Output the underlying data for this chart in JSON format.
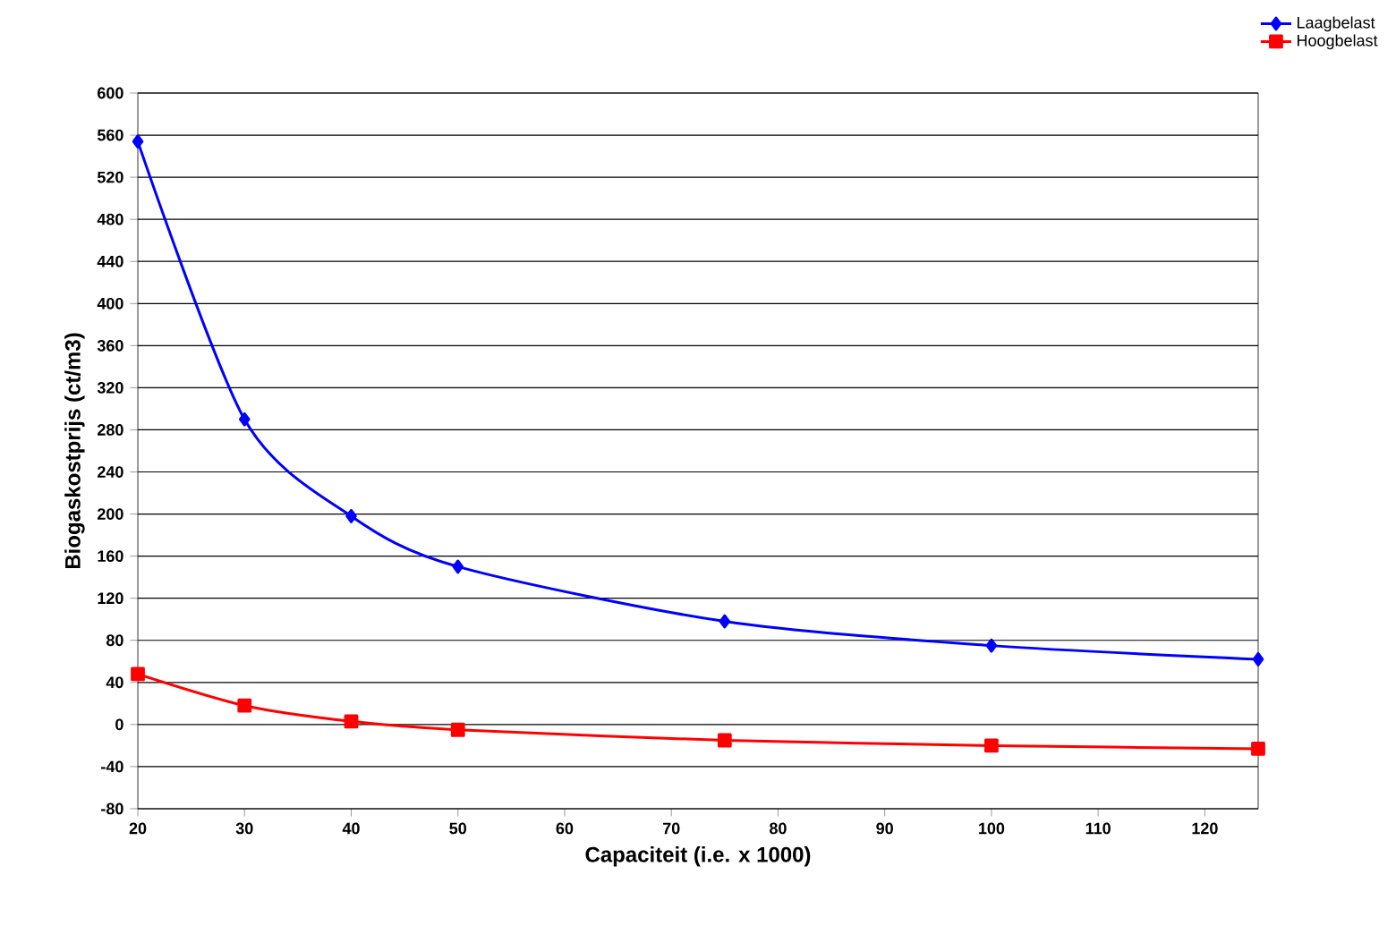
{
  "chart_data": {
    "type": "line",
    "xlabel": "Capaciteit (i.e. x 1000)",
    "ylabel": "Biogaskostprijs (ct/m3)",
    "x": [
      20,
      30,
      40,
      50,
      75,
      100,
      125
    ],
    "series": [
      {
        "name": "Laagbelast",
        "color": "#0000ff",
        "marker": "diamond",
        "values": [
          554,
          290,
          198,
          150,
          98,
          75,
          62
        ]
      },
      {
        "name": "Hoogbelast",
        "color": "#ff0000",
        "marker": "square",
        "values": [
          48,
          18,
          3,
          -5,
          -15,
          -20,
          -23
        ]
      }
    ],
    "xlim": [
      20,
      125
    ],
    "xticks": [
      20,
      30,
      40,
      50,
      60,
      70,
      80,
      90,
      100,
      110,
      120
    ],
    "ylim": [
      -80,
      600
    ],
    "yticks": [
      -80,
      -40,
      0,
      40,
      80,
      120,
      160,
      200,
      240,
      280,
      320,
      360,
      400,
      440,
      480,
      520,
      560,
      600
    ],
    "grid": "y",
    "legend": "top right",
    "line_style": "solid"
  }
}
